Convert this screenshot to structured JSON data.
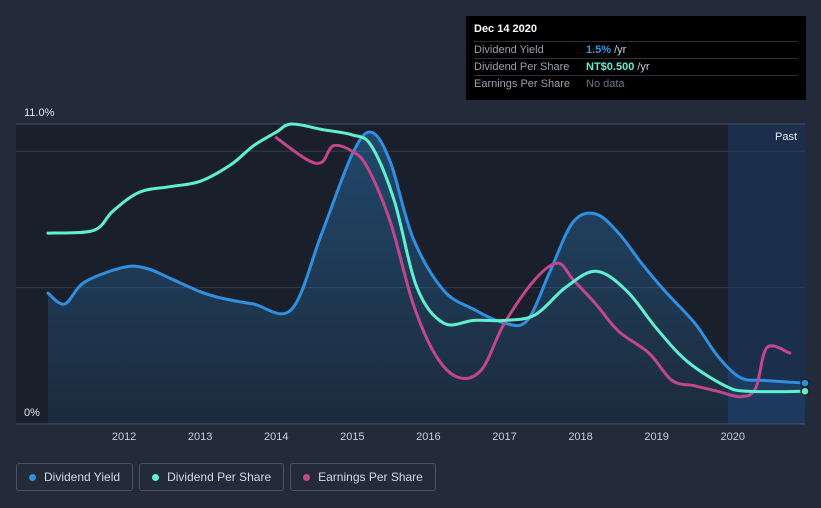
{
  "tooltip": {
    "date": "Dec 14 2020",
    "rows": [
      {
        "name": "Dividend Yield",
        "value": "1.5%",
        "unit": "/yr",
        "color": "#2f9be8"
      },
      {
        "name": "Dividend Per Share",
        "value": "NT$0.500",
        "unit": "/yr",
        "color": "#5ff0d0"
      },
      {
        "name": "Earnings Per Share",
        "value": "No data",
        "unit": "",
        "color": "#6b7280"
      }
    ]
  },
  "legend": [
    {
      "label": "Dividend Yield",
      "color": "#2f8fe0"
    },
    {
      "label": "Dividend Per Share",
      "color": "#5ff0d0"
    },
    {
      "label": "Earnings Per Share",
      "color": "#c2478a"
    }
  ],
  "chart_data": {
    "type": "line",
    "y_axis": {
      "top_label": "11.0%",
      "bottom_label": "0%",
      "ylim": [
        0,
        11
      ]
    },
    "past_label": "Past",
    "x_ticks": [
      "2012",
      "2013",
      "2014",
      "2015",
      "2016",
      "2017",
      "2018",
      "2019",
      "2020"
    ],
    "xlim": [
      2011.0,
      2020.95
    ],
    "series": [
      {
        "name": "Dividend Yield",
        "color": "#2f8fe0",
        "area": true,
        "x": [
          2011.0,
          2011.22,
          2011.48,
          2012.0,
          2012.3,
          2012.6,
          2013.0,
          2013.3,
          2013.7,
          2014.2,
          2014.6,
          2015.0,
          2015.25,
          2015.5,
          2015.8,
          2016.2,
          2016.6,
          2017.0,
          2017.3,
          2017.6,
          2017.9,
          2018.2,
          2018.5,
          2018.8,
          2019.1,
          2019.5,
          2019.8,
          2020.1,
          2020.4,
          2020.95
        ],
        "y": [
          4.8,
          4.4,
          5.2,
          5.75,
          5.7,
          5.35,
          4.85,
          4.6,
          4.4,
          4.2,
          7.0,
          9.9,
          10.7,
          9.6,
          6.8,
          4.9,
          4.2,
          3.7,
          3.8,
          5.6,
          7.4,
          7.7,
          7.0,
          5.9,
          4.9,
          3.7,
          2.5,
          1.7,
          1.6,
          1.5
        ]
      },
      {
        "name": "Dividend Per Share",
        "color": "#5ff0d0",
        "area": false,
        "x": [
          2011.0,
          2011.6,
          2011.85,
          2012.2,
          2012.6,
          2013.0,
          2013.4,
          2013.7,
          2014.0,
          2014.2,
          2014.6,
          2015.0,
          2015.25,
          2015.55,
          2015.85,
          2016.2,
          2016.6,
          2017.0,
          2017.4,
          2017.8,
          2018.2,
          2018.6,
          2019.0,
          2019.4,
          2019.9,
          2020.2,
          2020.95
        ],
        "y": [
          7.0,
          7.1,
          7.8,
          8.5,
          8.7,
          8.9,
          9.5,
          10.2,
          10.7,
          11.0,
          10.8,
          10.6,
          10.2,
          8.2,
          5.0,
          3.7,
          3.8,
          3.8,
          4.0,
          5.0,
          5.6,
          4.9,
          3.5,
          2.3,
          1.4,
          1.2,
          1.2
        ]
      },
      {
        "name": "Earnings Per Share",
        "color": "#c2478a",
        "area": false,
        "x": [
          2014.0,
          2014.4,
          2014.6,
          2014.75,
          2015.0,
          2015.2,
          2015.5,
          2015.8,
          2016.1,
          2016.4,
          2016.7,
          2017.0,
          2017.4,
          2017.7,
          2017.9,
          2018.2,
          2018.5,
          2018.9,
          2019.2,
          2019.5,
          2019.8,
          2020.1,
          2020.3,
          2020.45,
          2020.75
        ],
        "y": [
          10.5,
          9.7,
          9.6,
          10.2,
          10.0,
          9.4,
          7.4,
          4.4,
          2.5,
          1.7,
          2.0,
          3.7,
          5.3,
          5.9,
          5.3,
          4.4,
          3.4,
          2.6,
          1.6,
          1.4,
          1.2,
          1.0,
          1.3,
          2.8,
          2.6
        ]
      }
    ]
  }
}
